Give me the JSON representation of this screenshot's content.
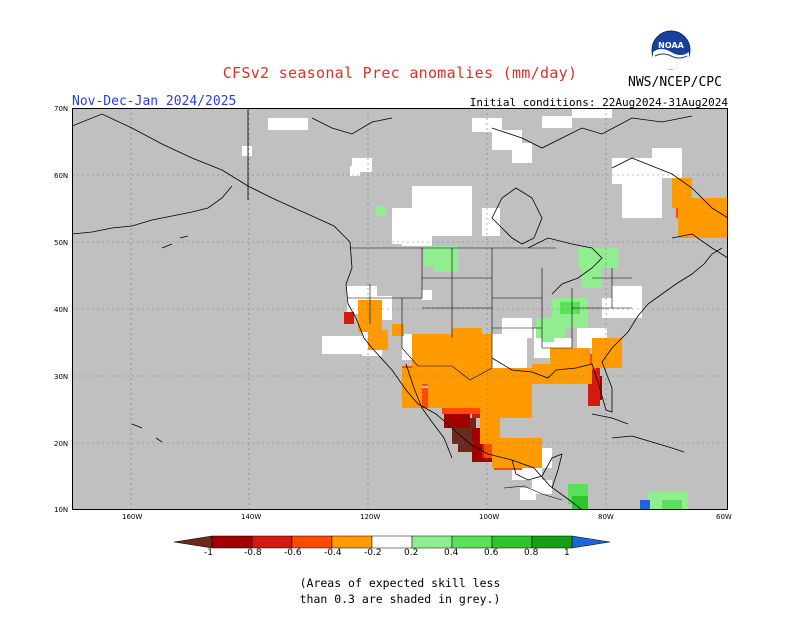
{
  "title": "CFSv2 seasonal Prec anomalies (mm/day)",
  "period": "Nov-Dec-Jan 2024/2025",
  "initial_conditions": "Initial conditions: 22Aug2024-31Aug2024",
  "agency": "NWS/NCEP/CPC",
  "logo_text": "NOAA",
  "map": {
    "lat_labels": [
      "70N",
      "60N",
      "50N",
      "40N",
      "30N",
      "20N",
      "10N"
    ],
    "lon_labels": [
      "160W",
      "140W",
      "120W",
      "100W",
      "80W",
      "60W"
    ],
    "region": "North America",
    "colors": {
      "no_skill": "#c0c0c0",
      "background": "#ffffff",
      "coast": "#000000"
    }
  },
  "legend": {
    "bins": [
      {
        "label": "-1",
        "color": "#6b2a1b"
      },
      {
        "label": "-0.8",
        "color": "#a00000"
      },
      {
        "label": "-0.6",
        "color": "#d31a0e"
      },
      {
        "label": "-0.4",
        "color": "#ff4a00"
      },
      {
        "label": "-0.2",
        "color": "#ff9b00"
      },
      {
        "label": "0.2",
        "color": "#ffffff"
      },
      {
        "label": "0.4",
        "color": "#90ee90"
      },
      {
        "label": "0.6",
        "color": "#5be05b"
      },
      {
        "label": "0.8",
        "color": "#2ec42e"
      },
      {
        "label": "1",
        "color": "#159f15"
      },
      {
        "label": "",
        "color": "#1e66d8"
      }
    ]
  },
  "note_line1": "(Areas of expected skill less",
  "note_line2": "than 0.3 are shaded in grey.)"
}
